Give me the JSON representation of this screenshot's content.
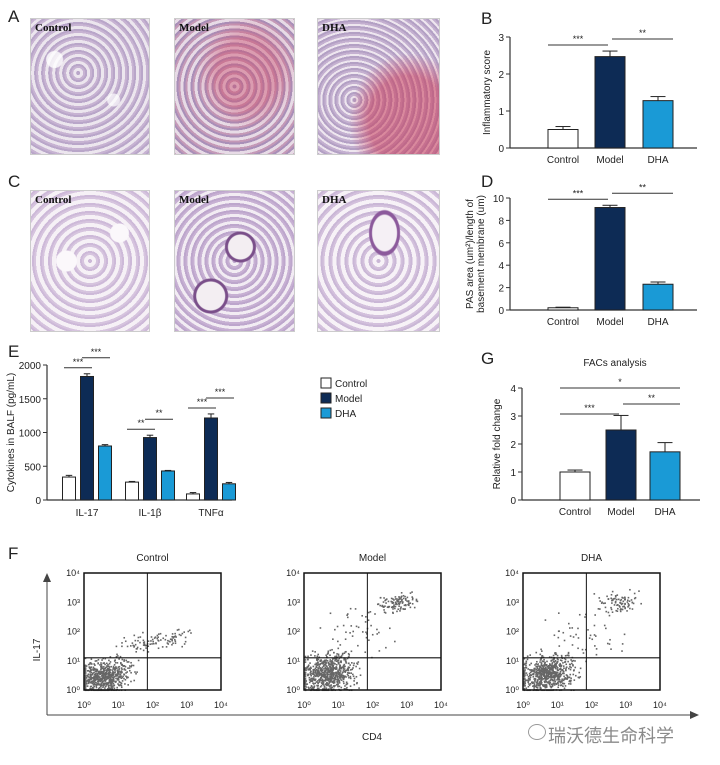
{
  "panels": {
    "A": "A",
    "B": "B",
    "C": "C",
    "D": "D",
    "E": "E",
    "F": "F",
    "G": "G"
  },
  "histology_A": [
    "Control",
    "Model",
    "DHA"
  ],
  "histology_C": [
    "Control",
    "Model",
    "DHA"
  ],
  "colors": {
    "control": "#ffffff",
    "model": "#0d2b55",
    "dha": "#1a9ad6",
    "axis": "#333333"
  },
  "chart_data": [
    {
      "id": "B",
      "type": "bar",
      "categories": [
        "Control",
        "Model",
        "DHA"
      ],
      "values": [
        0.5,
        2.47,
        1.28
      ],
      "errors": [
        0.08,
        0.15,
        0.11
      ],
      "ylabel": "Inflammatory score",
      "ylim": [
        0,
        3
      ],
      "yticks": [
        "0",
        "1",
        "2",
        "3"
      ],
      "comparisons": [
        {
          "from": 0,
          "to": 1,
          "label": "***"
        },
        {
          "from": 1,
          "to": 2,
          "label": "**"
        }
      ]
    },
    {
      "id": "D",
      "type": "bar",
      "categories": [
        "Control",
        "Model",
        "DHA"
      ],
      "values": [
        0.2,
        9.15,
        2.3
      ],
      "errors": [
        0.05,
        0.2,
        0.2
      ],
      "ylabel": "PAS area (um²)/length of basement membrane (um)",
      "ylim": [
        0,
        10
      ],
      "yticks": [
        "0",
        "2",
        "4",
        "6",
        "8",
        "10"
      ],
      "comparisons": [
        {
          "from": 0,
          "to": 1,
          "label": "***"
        },
        {
          "from": 1,
          "to": 2,
          "label": "**"
        }
      ]
    },
    {
      "id": "E",
      "type": "bar",
      "categories": [
        "IL-17",
        "IL-1β",
        "TNFα"
      ],
      "series": [
        {
          "name": "Control",
          "values": [
            340,
            265,
            90
          ],
          "errors": [
            25,
            10,
            20
          ]
        },
        {
          "name": "Model",
          "values": [
            1830,
            925,
            1215
          ],
          "errors": [
            40,
            35,
            60
          ]
        },
        {
          "name": "DHA",
          "values": [
            800,
            430,
            240
          ],
          "errors": [
            20,
            8,
            20
          ]
        }
      ],
      "ylabel": "Cytokines in BALF (pg/mL)",
      "ylim": [
        0,
        2000
      ],
      "yticks": [
        "0",
        "500",
        "1000",
        "1500",
        "2000"
      ],
      "legend": "right",
      "comparisons": [
        {
          "group": 0,
          "from": 0,
          "to": 1,
          "label": "***"
        },
        {
          "group": 0,
          "from": 1,
          "to": 2,
          "label": "***"
        },
        {
          "group": 1,
          "from": 0,
          "to": 1,
          "label": "**"
        },
        {
          "group": 1,
          "from": 1,
          "to": 2,
          "label": "**"
        },
        {
          "group": 2,
          "from": 0,
          "to": 1,
          "label": "***"
        },
        {
          "group": 2,
          "from": 1,
          "to": 2,
          "label": "***"
        }
      ]
    },
    {
      "id": "G",
      "type": "bar",
      "title": "FACs analysis",
      "categories": [
        "Control",
        "Model",
        "DHA"
      ],
      "values": [
        1.0,
        2.5,
        1.72
      ],
      "errors": [
        0.07,
        0.52,
        0.33
      ],
      "ylabel": "Relative fold change",
      "ylim": [
        0,
        4
      ],
      "yticks": [
        "0",
        "1",
        "2",
        "3",
        "4"
      ],
      "comparisons": [
        {
          "from": 0,
          "to": 1,
          "label": "***"
        },
        {
          "from": 1,
          "to": 2,
          "label": "**"
        },
        {
          "from": 0,
          "to": 2,
          "label": "*"
        }
      ]
    }
  ],
  "flow": {
    "titles": [
      "Control",
      "Model",
      "DHA"
    ],
    "xlabel": "CD4",
    "ylabel": "IL-17",
    "ticks": [
      "10⁰",
      "10¹",
      "10²",
      "10³",
      "10⁴"
    ],
    "scale": "log"
  },
  "watermark": "瑞沃德生命科学"
}
